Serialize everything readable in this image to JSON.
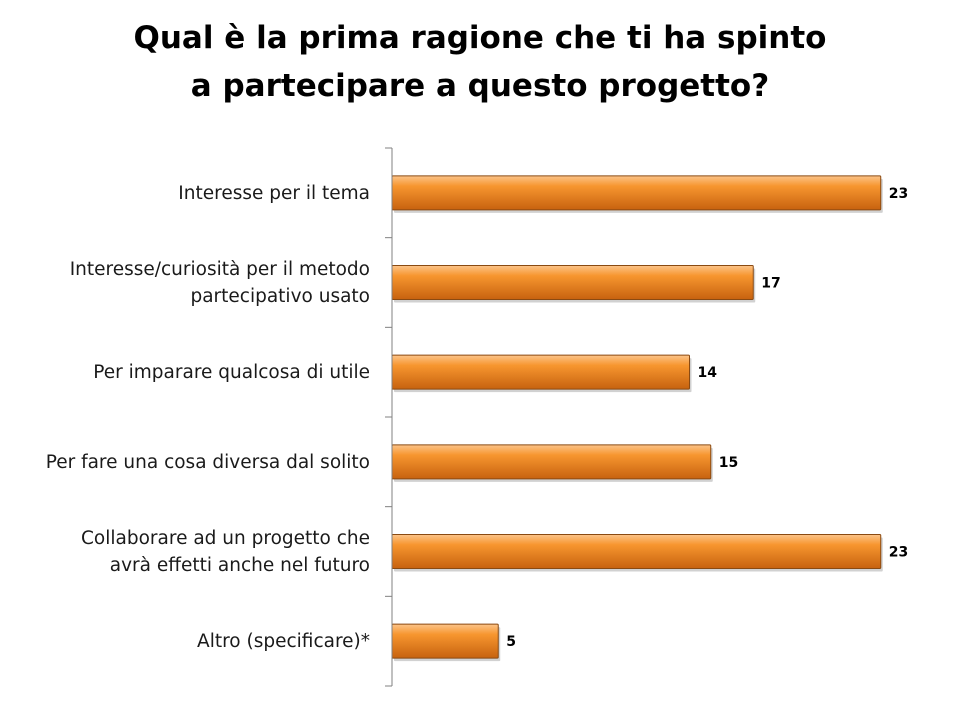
{
  "chart_data": {
    "type": "bar",
    "orientation": "horizontal",
    "title_lines": [
      "Qual è la prima ragione che ti ha spinto",
      "a partecipare a questo progetto?"
    ],
    "categories": [
      [
        "Interesse per il tema"
      ],
      [
        "Interesse/curiosità per il metodo",
        "partecipativo usato"
      ],
      [
        "Per imparare qualcosa di utile"
      ],
      [
        "Per fare una cosa diversa dal solito"
      ],
      [
        "Collaborare ad un progetto che",
        "avrà effetti anche nel futuro"
      ],
      [
        "Altro (specificare)*"
      ]
    ],
    "values": [
      23,
      17,
      14,
      15,
      23,
      5
    ],
    "xlim": [
      0,
      25
    ],
    "grid": false,
    "legend": "none",
    "colors": {
      "bar_fill": "#f7962f",
      "bar_highlight": "#fcc48a",
      "bar_shadow": "#c7620f",
      "bar_stroke": "#8a4a12",
      "axis": "#808080"
    }
  }
}
